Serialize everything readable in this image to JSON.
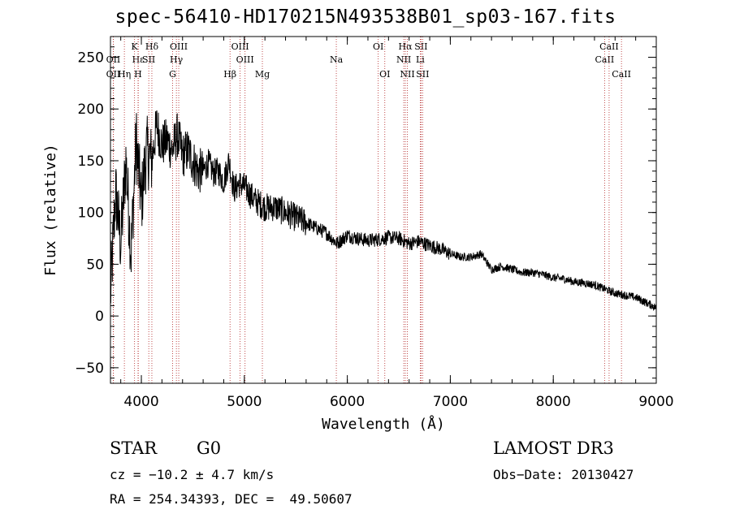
{
  "chart_data": {
    "type": "line",
    "title": "spec-56410-HD170215N493538B01_sp03-167.fits",
    "xlabel": "Wavelength (Å)",
    "ylabel": "Flux (relative)",
    "xlim": [
      3700,
      9000
    ],
    "ylim": [
      -65,
      270
    ],
    "x_ticks": [
      4000,
      5000,
      6000,
      7000,
      8000,
      9000
    ],
    "y_ticks": [
      -50,
      0,
      50,
      100,
      150,
      200,
      250
    ],
    "x_minor_step": 200,
    "y_minor_step": 10,
    "series": [
      {
        "name": "spectrum",
        "points": [
          [
            3700,
            20
          ],
          [
            3750,
            120
          ],
          [
            3800,
            70
          ],
          [
            3850,
            150
          ],
          [
            3900,
            60
          ],
          [
            3950,
            170
          ],
          [
            4000,
            110
          ],
          [
            4050,
            160
          ],
          [
            4100,
            150
          ],
          [
            4150,
            185
          ],
          [
            4200,
            165
          ],
          [
            4250,
            170
          ],
          [
            4300,
            160
          ],
          [
            4350,
            175
          ],
          [
            4400,
            155
          ],
          [
            4450,
            160
          ],
          [
            4500,
            150
          ],
          [
            4550,
            140
          ],
          [
            4600,
            140
          ],
          [
            4650,
            148
          ],
          [
            4700,
            138
          ],
          [
            4750,
            140
          ],
          [
            4800,
            130
          ],
          [
            4850,
            150
          ],
          [
            4900,
            122
          ],
          [
            4950,
            128
          ],
          [
            5000,
            125
          ],
          [
            5100,
            112
          ],
          [
            5200,
            105
          ],
          [
            5300,
            105
          ],
          [
            5400,
            100
          ],
          [
            5500,
            95
          ],
          [
            5600,
            90
          ],
          [
            5700,
            85
          ],
          [
            5800,
            80
          ],
          [
            5900,
            70
          ],
          [
            6000,
            78
          ],
          [
            6100,
            75
          ],
          [
            6200,
            73
          ],
          [
            6300,
            74
          ],
          [
            6400,
            76
          ],
          [
            6500,
            75
          ],
          [
            6600,
            70
          ],
          [
            6700,
            72
          ],
          [
            6800,
            68
          ],
          [
            6900,
            65
          ],
          [
            7000,
            60
          ],
          [
            7100,
            57
          ],
          [
            7200,
            57
          ],
          [
            7300,
            60
          ],
          [
            7400,
            45
          ],
          [
            7500,
            48
          ],
          [
            7600,
            45
          ],
          [
            7700,
            42
          ],
          [
            7800,
            42
          ],
          [
            7900,
            40
          ],
          [
            8000,
            37
          ],
          [
            8100,
            36
          ],
          [
            8200,
            33
          ],
          [
            8300,
            32
          ],
          [
            8400,
            30
          ],
          [
            8500,
            26
          ],
          [
            8600,
            22
          ],
          [
            8700,
            20
          ],
          [
            8800,
            18
          ],
          [
            8900,
            13
          ],
          [
            9000,
            8
          ]
        ]
      }
    ],
    "lines": [
      {
        "label": "Hα",
        "x": 6563,
        "row": 1
      },
      {
        "label": "Hβ",
        "x": 4861,
        "row": 3
      },
      {
        "label": "Hγ",
        "x": 4340,
        "row": 2
      },
      {
        "label": "Hδ",
        "x": 4102,
        "row": 1
      },
      {
        "label": "Hε",
        "x": 3970,
        "row": 2
      },
      {
        "label": "Hη",
        "x": 3835,
        "row": 3
      },
      {
        "label": "K",
        "x": 3934,
        "row": 1
      },
      {
        "label": "H",
        "x": 3968,
        "row": 3
      },
      {
        "label": "G",
        "x": 4304,
        "row": 3
      },
      {
        "label": "Mg",
        "x": 5175,
        "row": 3
      },
      {
        "label": "Na",
        "x": 5893,
        "row": 2
      },
      {
        "label": "OII",
        "x": 3727,
        "row": 2
      },
      {
        "label": "OII",
        "x": 3727,
        "row": 3
      },
      {
        "label": "SII",
        "x": 4072,
        "row": 2
      },
      {
        "label": "OIII",
        "x": 4363,
        "row": 1
      },
      {
        "label": "OIII",
        "x": 4959,
        "row": 1
      },
      {
        "label": "OIII",
        "x": 5007,
        "row": 2
      },
      {
        "label": "OI",
        "x": 6300,
        "row": 1
      },
      {
        "label": "OI",
        "x": 6364,
        "row": 3
      },
      {
        "label": "NII",
        "x": 6548,
        "row": 2
      },
      {
        "label": "NII",
        "x": 6583,
        "row": 3
      },
      {
        "label": "SII",
        "x": 6716,
        "row": 1
      },
      {
        "label": "SII",
        "x": 6731,
        "row": 3
      },
      {
        "label": "Li",
        "x": 6708,
        "row": 2
      },
      {
        "label": "CaII",
        "x": 8498,
        "row": 2
      },
      {
        "label": "CaII",
        "x": 8542,
        "row": 1
      },
      {
        "label": "CaII",
        "x": 8662,
        "row": 3
      }
    ]
  },
  "info": {
    "class": "STAR",
    "subclass": "G0",
    "survey": "LAMOST DR3",
    "cz": "cz = −10.2 ± 4.7 km/s",
    "obs_date": "Obs−Date: 20130427",
    "coords": "RA = 254.34393, DEC =  49.50607"
  },
  "colors": {
    "line_marker": "#b22222",
    "spectrum": "#000000"
  }
}
